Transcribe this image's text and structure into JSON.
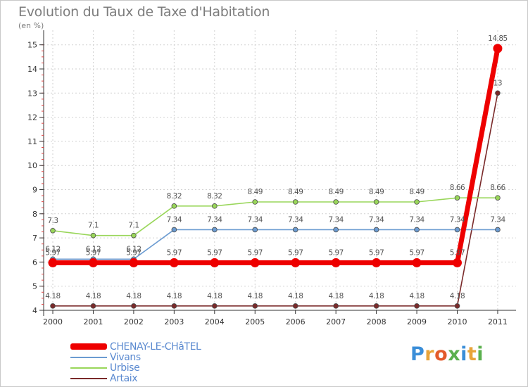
{
  "header": {
    "title": "Evolution du Taux de Taxe d'Habitation",
    "unit": "(en %)"
  },
  "chart_data": {
    "type": "line",
    "title": "Evolution du Taux de Taxe d'Habitation",
    "ylabel": "(en %)",
    "xlabel": "",
    "ylim": [
      4,
      15
    ],
    "yticks": [
      4,
      5,
      6,
      7,
      8,
      9,
      10,
      11,
      12,
      13,
      14,
      15
    ],
    "categories": [
      "2000",
      "2001",
      "2002",
      "2003",
      "2004",
      "2005",
      "2006",
      "2007",
      "2008",
      "2009",
      "2010",
      "2011"
    ],
    "series": [
      {
        "name": "CHENAY-LE-CHâTEL",
        "color": "#ee0000",
        "values": [
          5.97,
          5.97,
          5.97,
          5.97,
          5.97,
          5.97,
          5.97,
          5.97,
          5.97,
          5.97,
          5.97,
          14.85
        ],
        "labels": [
          "5.97",
          "5.97",
          "5.97",
          "5.97",
          "5.97",
          "5.97",
          "5.97",
          "5.97",
          "5.97",
          "5.97",
          "5.97",
          "14.85"
        ]
      },
      {
        "name": "Vivans",
        "color": "#6b9bd1",
        "values": [
          6.12,
          6.12,
          6.12,
          7.34,
          7.34,
          7.34,
          7.34,
          7.34,
          7.34,
          7.34,
          7.34,
          7.34
        ],
        "labels": [
          "6.12",
          "6.12",
          "6.12",
          "7.34",
          "7.34",
          "7.34",
          "7.34",
          "7.34",
          "7.34",
          "7.34",
          "7.34",
          "7.34"
        ]
      },
      {
        "name": "Urbise",
        "color": "#99d65a",
        "values": [
          7.3,
          7.1,
          7.1,
          8.32,
          8.32,
          8.49,
          8.49,
          8.49,
          8.49,
          8.49,
          8.66,
          8.66
        ],
        "labels": [
          "7.3",
          "7.1",
          "7.1",
          "8.32",
          "8.32",
          "8.49",
          "8.49",
          "8.49",
          "8.49",
          "8.49",
          "8.66",
          "8.66"
        ]
      },
      {
        "name": "Artaix",
        "color": "#7a2a2a",
        "values": [
          4.18,
          4.18,
          4.18,
          4.18,
          4.18,
          4.18,
          4.18,
          4.18,
          4.18,
          4.18,
          4.18,
          13
        ],
        "labels": [
          "4.18",
          "4.18",
          "4.18",
          "4.18",
          "4.18",
          "4.18",
          "4.18",
          "4.18",
          "4.18",
          "4.18",
          "4.18",
          "13"
        ]
      }
    ]
  },
  "legend": {
    "items": [
      {
        "label": "CHENAY-LE-CHâTEL",
        "color": "#ee0000"
      },
      {
        "label": "Vivans",
        "color": "#6b9bd1"
      },
      {
        "label": "Urbise",
        "color": "#99d65a"
      },
      {
        "label": "Artaix",
        "color": "#7a2a2a"
      }
    ]
  },
  "logo": {
    "letters": [
      "P",
      "r",
      "o",
      "x",
      "i",
      "t",
      "i"
    ],
    "colors": [
      "#3b8ed8",
      "#e8a43a",
      "#e35b2b",
      "#5bb04e",
      "#3b8ed8",
      "#e8a43a",
      "#5bb04e"
    ]
  }
}
